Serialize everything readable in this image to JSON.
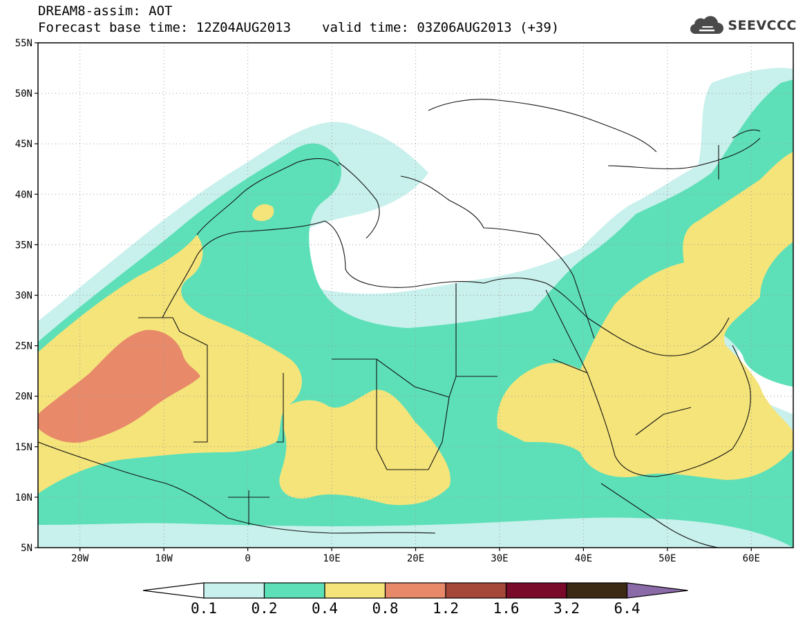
{
  "header": {
    "title": "DREAM8-assim: AOT",
    "base_time": "Forecast base time: 12Z04AUG2013",
    "valid_time": "valid time: 03Z06AUG2013 (+39)"
  },
  "logo": {
    "text": "SEEVCCC",
    "icon": "cloud-icon"
  },
  "map": {
    "lat_range": [
      5,
      55
    ],
    "lon_range": [
      -25,
      65
    ],
    "grid": "dotted",
    "lat_labels": [
      "55N",
      "50N",
      "45N",
      "40N",
      "35N",
      "30N",
      "25N",
      "20N",
      "15N",
      "10N",
      "5N"
    ],
    "lon_labels": [
      "20W",
      "10W",
      "0",
      "10E",
      "20E",
      "30E",
      "40E",
      "50E",
      "60E"
    ],
    "lon_values": [
      -20,
      -10,
      0,
      10,
      20,
      30,
      40,
      50,
      60
    ],
    "lat_values": [
      55,
      50,
      45,
      40,
      35,
      30,
      25,
      20,
      15,
      10,
      5
    ]
  },
  "colorbar": {
    "labels": [
      "0.1",
      "0.2",
      "0.4",
      "0.8",
      "1.2",
      "1.6",
      "3.2",
      "6.4"
    ],
    "colors": [
      "#ffffff",
      "#c8f0ec",
      "#5de0b8",
      "#f5e47a",
      "#e8896a",
      "#a5483a",
      "#7a0a2a",
      "#3d2a14",
      "#8b6aa8"
    ]
  },
  "fields": {
    "levels": {
      "c01": "#c8f0ec",
      "c02": "#5de0b8",
      "c04": "#f5e47a",
      "c08": "#e8896a"
    }
  }
}
